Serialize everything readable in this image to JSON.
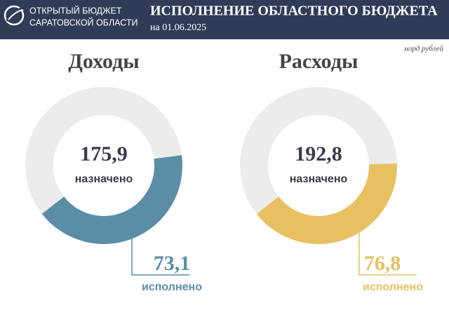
{
  "header": {
    "logo_line1": "ОТКРЫТЫЙ БЮДЖЕТ",
    "logo_line2": "САРАТОВСКОЙ ОБЛАСТИ",
    "title": "ИСПОЛНЕНИЕ ОБЛАСТНОГО БЮДЖЕТА",
    "subtitle": "на 01.06.2025"
  },
  "unit": "млрд рублей",
  "chart_data": [
    {
      "type": "donut",
      "title": "Доходы",
      "total": 175.9,
      "total_label": "175,9",
      "total_caption": "назначено",
      "values": [
        73.1
      ],
      "value_labels": [
        "73,1"
      ],
      "value_caption": "исполнено",
      "color": "#5b8ea6",
      "track_color": "#ececec"
    },
    {
      "type": "donut",
      "title": "Расходы",
      "total": 192.8,
      "total_label": "192,8",
      "total_caption": "назначено",
      "values": [
        76.8
      ],
      "value_labels": [
        "76,8"
      ],
      "value_caption": "исполнено",
      "color": "#e8c062",
      "track_color": "#ececec"
    }
  ]
}
